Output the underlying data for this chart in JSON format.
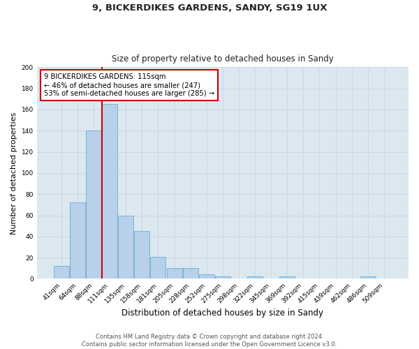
{
  "title_line1": "9, BICKERDIKES GARDENS, SANDY, SG19 1UX",
  "title_line2": "Size of property relative to detached houses in Sandy",
  "xlabel": "Distribution of detached houses by size in Sandy",
  "ylabel": "Number of detached properties",
  "bar_labels": [
    "41sqm",
    "64sqm",
    "88sqm",
    "111sqm",
    "135sqm",
    "158sqm",
    "181sqm",
    "205sqm",
    "228sqm",
    "252sqm",
    "275sqm",
    "298sqm",
    "322sqm",
    "345sqm",
    "369sqm",
    "392sqm",
    "415sqm",
    "439sqm",
    "462sqm",
    "486sqm",
    "509sqm"
  ],
  "bar_heights": [
    12,
    72,
    140,
    165,
    60,
    45,
    21,
    10,
    10,
    4,
    2,
    0,
    2,
    0,
    2,
    0,
    0,
    0,
    0,
    2,
    0
  ],
  "bar_color": "#b8d0ea",
  "bar_edge_color": "#6baed6",
  "vline_color": "#cc0000",
  "annotation_text": "9 BICKERDIKES GARDENS: 115sqm\n← 46% of detached houses are smaller (247)\n53% of semi-detached houses are larger (285) →",
  "annotation_box_color": "#ffffff",
  "annotation_box_edge": "#cc0000",
  "ylim": [
    0,
    200
  ],
  "yticks": [
    0,
    20,
    40,
    60,
    80,
    100,
    120,
    140,
    160,
    180,
    200
  ],
  "grid_color": "#c8d8e8",
  "background_color": "#dce8f0",
  "fig_background": "#ffffff",
  "footer_line1": "Contains HM Land Registry data © Crown copyright and database right 2024.",
  "footer_line2": "Contains public sector information licensed under the Open Government Licence v3.0."
}
